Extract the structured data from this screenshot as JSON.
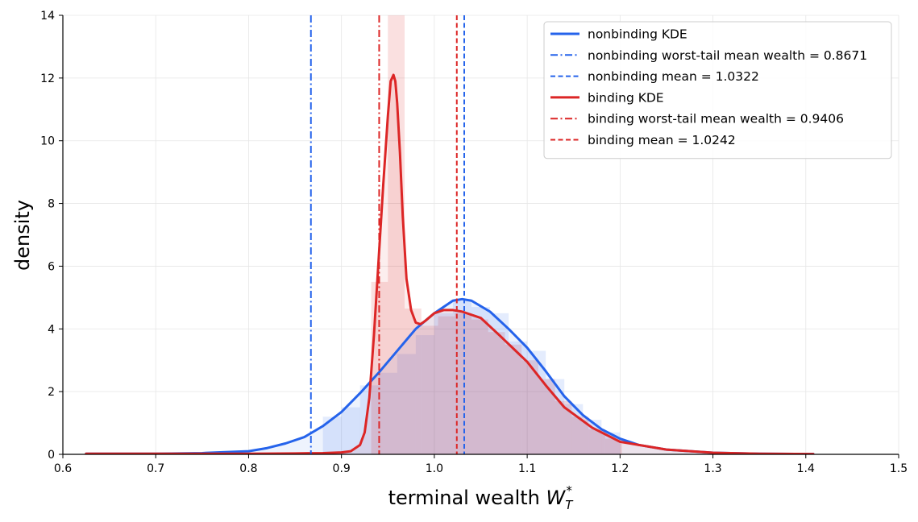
{
  "chart_data": {
    "type": "area",
    "xlabel": "terminal wealth",
    "xlabel_symbol": "W",
    "xlabel_sub": "T",
    "xlabel_sup": "*",
    "ylabel": "density",
    "xlim": [
      0.6,
      1.5
    ],
    "ylim": [
      0,
      14
    ],
    "xticks": [
      "0.6",
      "0.7",
      "0.8",
      "0.9",
      "1.0",
      "1.1",
      "1.2",
      "1.3",
      "1.4",
      "1.5"
    ],
    "yticks": [
      "0",
      "2",
      "4",
      "6",
      "8",
      "10",
      "12",
      "14"
    ],
    "grid": true,
    "legend_position": "top-right",
    "colors": {
      "nonbinding": "#2563eb",
      "binding": "#dc2626"
    },
    "series": [
      {
        "name": "nonbinding KDE",
        "kind": "kde",
        "color": "#2563eb",
        "x": [
          0.625,
          0.7,
          0.75,
          0.8,
          0.82,
          0.84,
          0.86,
          0.88,
          0.9,
          0.92,
          0.94,
          0.96,
          0.98,
          1.0,
          1.02,
          1.03,
          1.04,
          1.06,
          1.08,
          1.1,
          1.12,
          1.14,
          1.16,
          1.18,
          1.2,
          1.22,
          1.25,
          1.3,
          1.35,
          1.408
        ],
        "y": [
          0.02,
          0.02,
          0.04,
          0.1,
          0.2,
          0.35,
          0.55,
          0.9,
          1.35,
          1.95,
          2.6,
          3.3,
          4.0,
          4.5,
          4.9,
          4.95,
          4.9,
          4.55,
          4.0,
          3.4,
          2.65,
          1.85,
          1.25,
          0.8,
          0.5,
          0.3,
          0.15,
          0.05,
          0.02,
          0.01
        ]
      },
      {
        "name": "binding KDE",
        "kind": "kde",
        "color": "#dc2626",
        "x": [
          0.625,
          0.7,
          0.8,
          0.85,
          0.88,
          0.9,
          0.91,
          0.92,
          0.925,
          0.93,
          0.935,
          0.94,
          0.945,
          0.95,
          0.953,
          0.956,
          0.958,
          0.96,
          0.963,
          0.966,
          0.97,
          0.975,
          0.98,
          0.985,
          0.99,
          1.0,
          1.01,
          1.02,
          1.03,
          1.05,
          1.07,
          1.1,
          1.12,
          1.14,
          1.17,
          1.2,
          1.25,
          1.3,
          1.35,
          1.408
        ],
        "y": [
          0.02,
          0.02,
          0.02,
          0.03,
          0.04,
          0.06,
          0.1,
          0.3,
          0.7,
          1.8,
          3.8,
          6.2,
          8.6,
          10.8,
          11.9,
          12.1,
          11.9,
          11.2,
          9.6,
          7.6,
          5.6,
          4.6,
          4.2,
          4.15,
          4.25,
          4.5,
          4.6,
          4.6,
          4.55,
          4.35,
          3.8,
          2.95,
          2.2,
          1.5,
          0.85,
          0.4,
          0.15,
          0.05,
          0.02,
          0.01
        ]
      }
    ],
    "vlines": [
      {
        "name": "nonbinding worst-tail mean wealth = 0.8671",
        "x": 0.8671,
        "style": "dashdot",
        "color": "#2563eb"
      },
      {
        "name": "nonbinding mean = 1.0322",
        "x": 1.0322,
        "style": "dashed",
        "color": "#2563eb"
      },
      {
        "name": "binding worst-tail mean wealth = 0.9406",
        "x": 0.9406,
        "style": "dashdot",
        "color": "#dc2626"
      },
      {
        "name": "binding mean = 1.0242",
        "x": 1.0242,
        "style": "dashed",
        "color": "#dc2626"
      }
    ],
    "histograms": [
      {
        "series": "nonbinding",
        "color": "#2563eb",
        "opacity": 0.12,
        "bin_width": 0.02,
        "bins": [
          0.88,
          0.9,
          0.92,
          0.94,
          0.96,
          0.98,
          1.0,
          1.02,
          1.04,
          1.06,
          1.08,
          1.1,
          1.12,
          1.14,
          1.16,
          1.18
        ],
        "values": [
          1.2,
          1.5,
          2.2,
          2.6,
          3.2,
          3.8,
          4.5,
          4.9,
          4.7,
          4.5,
          3.6,
          3.3,
          2.4,
          1.6,
          1.1,
          0.7
        ]
      },
      {
        "series": "binding",
        "color": "#dc2626",
        "opacity": 0.14,
        "bin_width": 0.018,
        "bins": [
          0.932,
          0.95,
          0.968,
          0.986,
          1.004,
          1.022,
          1.04,
          1.058,
          1.076,
          1.094,
          1.112,
          1.13,
          1.148,
          1.166,
          1.184
        ],
        "values": [
          5.5,
          14.0,
          4.65,
          4.1,
          4.4,
          4.5,
          4.3,
          3.9,
          3.5,
          3.0,
          2.4,
          1.7,
          1.2,
          0.8,
          0.5
        ]
      }
    ],
    "legend": [
      {
        "label": "nonbinding KDE",
        "style": "solid",
        "color": "#2563eb"
      },
      {
        "label": "nonbinding worst-tail mean wealth = 0.8671",
        "style": "dashdot",
        "color": "#2563eb"
      },
      {
        "label": "nonbinding mean = 1.0322",
        "style": "dashed",
        "color": "#2563eb"
      },
      {
        "label": "binding KDE",
        "style": "solid",
        "color": "#dc2626"
      },
      {
        "label": "binding worst-tail mean wealth = 0.9406",
        "style": "dashdot",
        "color": "#dc2626"
      },
      {
        "label": "binding mean = 1.0242",
        "style": "dashed",
        "color": "#dc2626"
      }
    ]
  }
}
